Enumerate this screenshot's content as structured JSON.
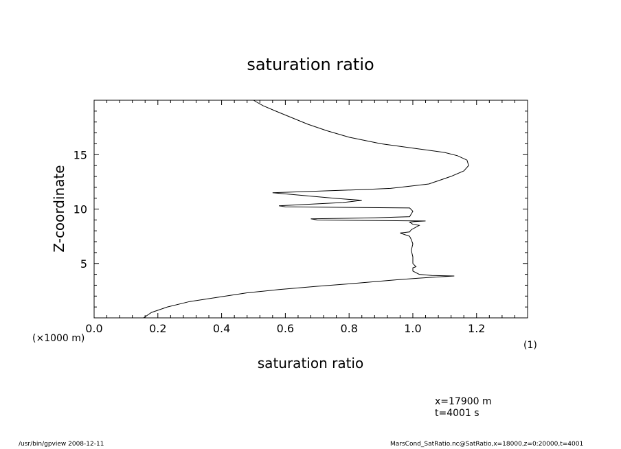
{
  "chart_data": {
    "type": "line",
    "title": "saturation ratio",
    "xlabel": "saturation ratio",
    "ylabel": "Z-coordinate",
    "x_unit": "(1)",
    "y_unit": "(×1000 m)",
    "xlim": [
      0.0,
      1.36
    ],
    "ylim": [
      0.0,
      20.0
    ],
    "x_ticks": [
      "0.0",
      "0.2",
      "0.4",
      "0.6",
      "0.8",
      "1.0",
      "1.2"
    ],
    "y_ticks": [
      "5",
      "10",
      "15"
    ],
    "series": [
      {
        "color": "#000000",
        "x": [
          0.155,
          0.18,
          0.23,
          0.3,
          0.39,
          0.48,
          0.58,
          0.7,
          0.83,
          0.95,
          1.02,
          1.07,
          1.13,
          1.06,
          1.02,
          1.0,
          1.0,
          1.01,
          1.0,
          1.0,
          0.995,
          1.0,
          0.995,
          0.99,
          0.96,
          0.99,
          0.995,
          1.02,
          1.0,
          0.99,
          1.005,
          1.04,
          0.7,
          0.68,
          0.88,
          0.99,
          1.0,
          0.99,
          0.6,
          0.58,
          0.78,
          0.84,
          0.75,
          0.56,
          0.85,
          0.93,
          0.99,
          1.05,
          1.12,
          1.16,
          1.175,
          1.17,
          1.14,
          1.1,
          1.0,
          0.9,
          0.8,
          0.73,
          0.67,
          0.62,
          0.57,
          0.53,
          0.5
        ],
        "y": [
          0.0,
          0.5,
          1.0,
          1.5,
          1.9,
          2.3,
          2.6,
          2.9,
          3.2,
          3.5,
          3.65,
          3.75,
          3.85,
          3.9,
          4.0,
          4.3,
          4.6,
          4.7,
          5.0,
          5.6,
          6.2,
          6.8,
          7.2,
          7.5,
          7.8,
          7.9,
          8.1,
          8.5,
          8.6,
          8.8,
          8.85,
          8.9,
          9.0,
          9.1,
          9.2,
          9.3,
          9.8,
          10.1,
          10.2,
          10.3,
          10.6,
          10.8,
          11.0,
          11.5,
          11.8,
          11.9,
          12.1,
          12.3,
          13.0,
          13.5,
          14.0,
          14.5,
          14.9,
          15.2,
          15.6,
          16.0,
          16.6,
          17.2,
          17.8,
          18.4,
          19.0,
          19.5,
          20.0
        ]
      }
    ]
  },
  "annotations": {
    "position": "x=17900 m",
    "time": "t=4001 s"
  },
  "footer": {
    "left": "/usr/bin/gpview  2008-12-11",
    "right": "MarsCond_SatRatio.nc@SatRatio,x=18000,z=0:20000,t=4001"
  }
}
